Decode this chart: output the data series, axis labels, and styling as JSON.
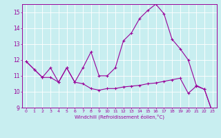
{
  "xlabel": "Windchill (Refroidissement éolien,°C)",
  "xlim": [
    -0.5,
    23.5
  ],
  "ylim": [
    9,
    15.5
  ],
  "yticks": [
    9,
    10,
    11,
    12,
    13,
    14,
    15
  ],
  "xticks": [
    0,
    1,
    2,
    3,
    4,
    5,
    6,
    7,
    8,
    9,
    10,
    11,
    12,
    13,
    14,
    15,
    16,
    17,
    18,
    19,
    20,
    21,
    22,
    23
  ],
  "bg_color": "#c8eef0",
  "line_color": "#990099",
  "grid_color": "#ffffff",
  "lines": [
    {
      "x": [
        0,
        1,
        2,
        3,
        4,
        5,
        6,
        7,
        8,
        9,
        10,
        11,
        12,
        13,
        14,
        15,
        16,
        17,
        18,
        19,
        20,
        21,
        22,
        23
      ],
      "y": [
        11.9,
        11.4,
        10.9,
        10.9,
        10.6,
        11.5,
        10.6,
        10.5,
        10.2,
        10.1,
        10.2,
        10.2,
        10.3,
        10.35,
        10.4,
        10.5,
        10.55,
        10.65,
        10.75,
        10.85,
        9.9,
        10.35,
        10.15,
        8.7
      ]
    },
    {
      "x": [
        0,
        1,
        2,
        3,
        4,
        5,
        6,
        7,
        8,
        9,
        10,
        11,
        12,
        13,
        14,
        15,
        16,
        17,
        18,
        19,
        20,
        21,
        22,
        23
      ],
      "y": [
        11.9,
        11.4,
        10.9,
        11.5,
        10.6,
        11.5,
        10.6,
        11.5,
        12.5,
        11.0,
        11.0,
        11.5,
        13.2,
        13.7,
        14.6,
        15.1,
        15.5,
        14.9,
        13.3,
        12.7,
        12.0,
        10.4,
        10.15,
        8.7
      ]
    }
  ]
}
